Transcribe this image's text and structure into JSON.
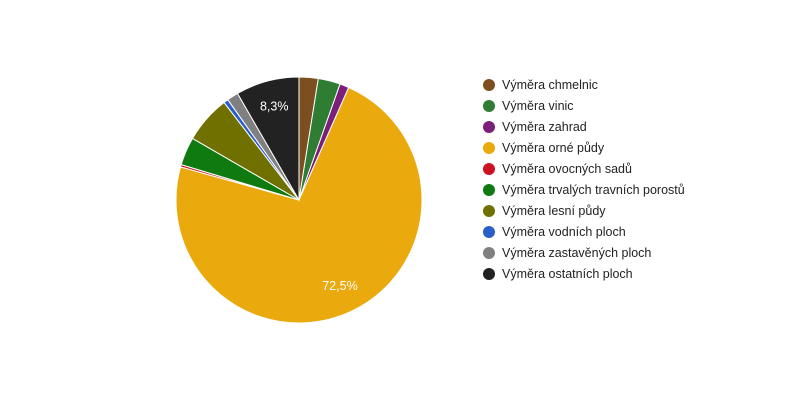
{
  "chart_data": {
    "type": "pie",
    "series": [
      {
        "name": "Výměra chmelnic",
        "value": 2.5,
        "color": "#7b4f1f"
      },
      {
        "name": "Výměra vinic",
        "value": 2.9,
        "color": "#2e7d32"
      },
      {
        "name": "Výměra zahrad",
        "value": 1.2,
        "color": "#7b1f7b"
      },
      {
        "name": "Výměra orné půdy",
        "value": 72.5,
        "color": "#eaa90c"
      },
      {
        "name": "Výměra ovocných sadů",
        "value": 0.3,
        "color": "#cc1122"
      },
      {
        "name": "Výměra trvalých travních porostů",
        "value": 3.7,
        "color": "#0f7a0f"
      },
      {
        "name": "Výměra lesní půdy",
        "value": 6.2,
        "color": "#707000"
      },
      {
        "name": "Výměra vodních ploch",
        "value": 0.6,
        "color": "#2a5fc9"
      },
      {
        "name": "Výměra zastavěných ploch",
        "value": 1.5,
        "color": "#808080"
      },
      {
        "name": "Výměra ostatních ploch",
        "value": 8.3,
        "color": "#222222"
      }
    ],
    "data_labels": [
      {
        "series": "Výměra orné půdy",
        "text": "72,5%"
      },
      {
        "series": "Výměra ostatních ploch",
        "text": "8,3%"
      }
    ],
    "legend_position": "right"
  }
}
